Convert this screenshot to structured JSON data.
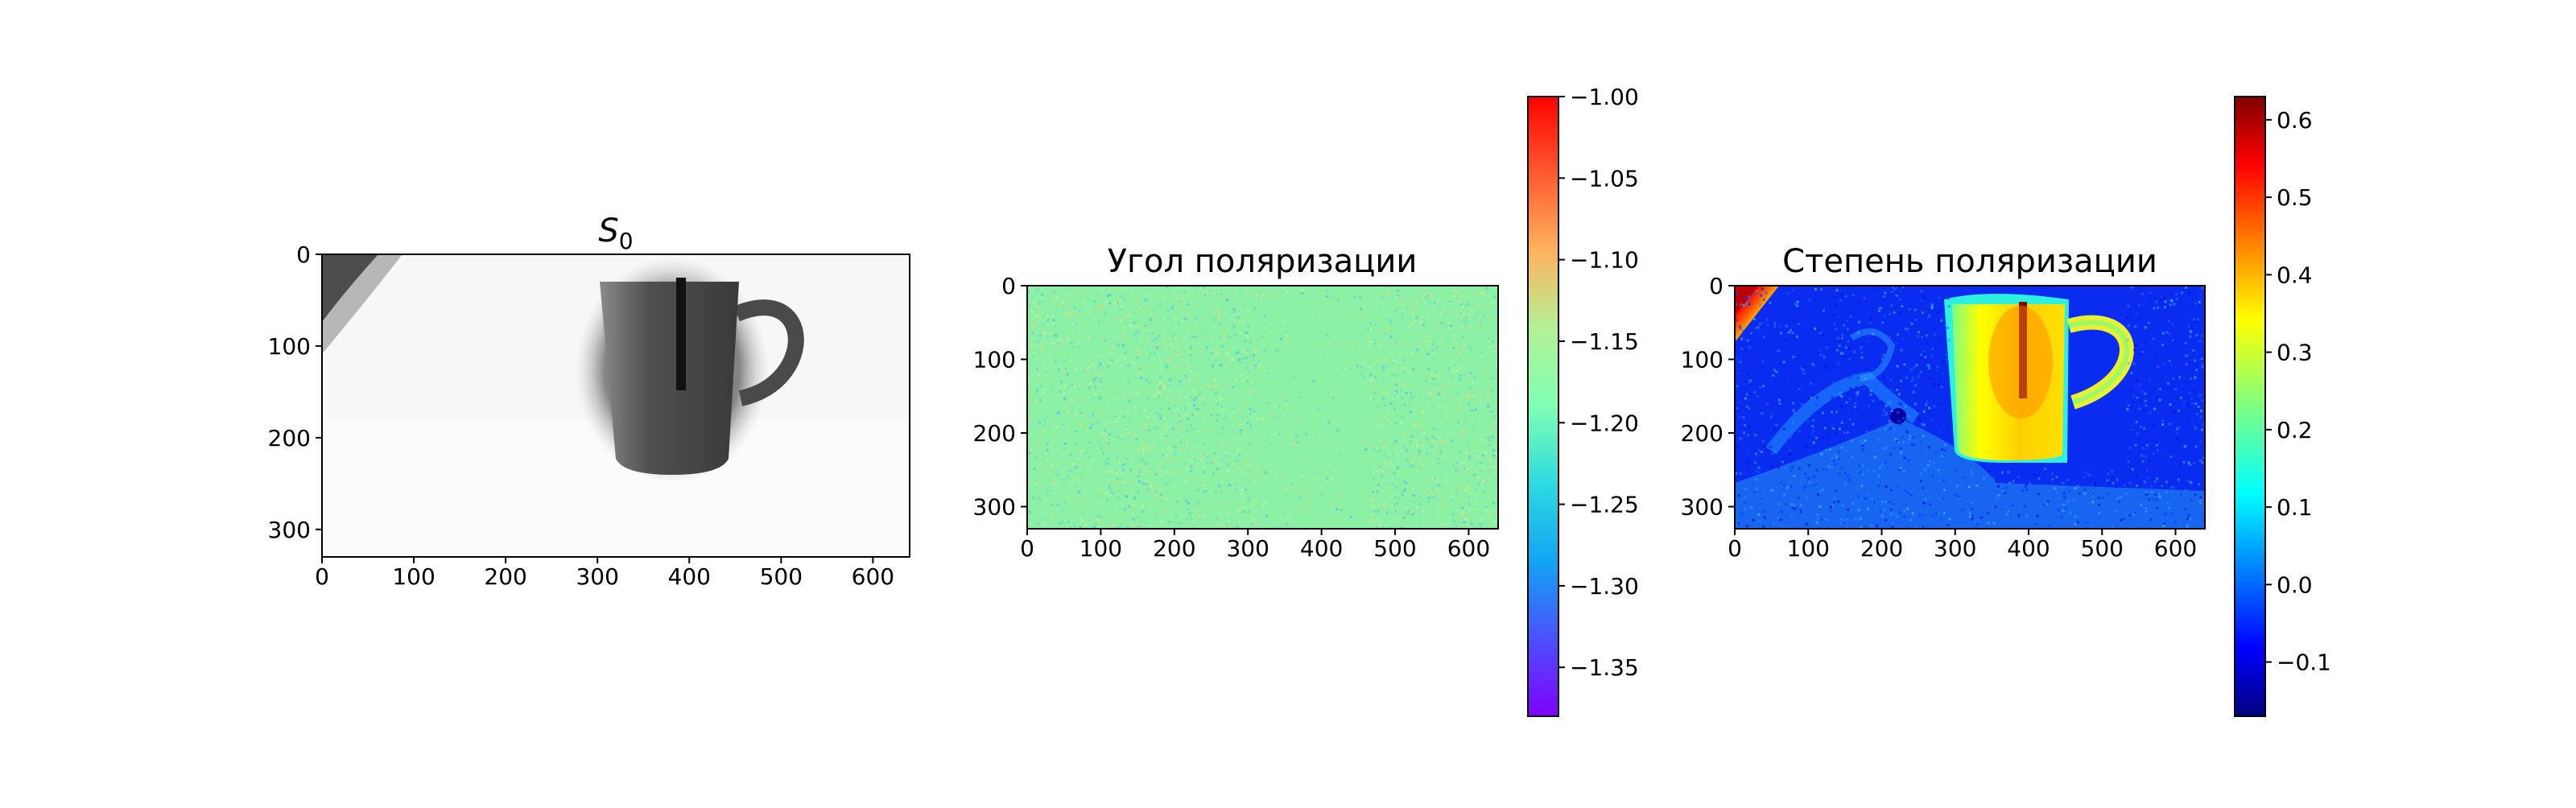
{
  "chart_data": [
    {
      "type": "heatmap",
      "title_main": "S",
      "title_sub": "0",
      "colormap": "gray",
      "extent": {
        "x": [
          0,
          640
        ],
        "y": [
          0,
          330
        ]
      },
      "x_ticks": [
        0,
        100,
        200,
        300,
        400,
        500,
        600
      ],
      "y_ticks": [
        0,
        100,
        200,
        300
      ],
      "colorbar": null
    },
    {
      "type": "heatmap",
      "title": "Угол поляризации",
      "colormap": "rainbow",
      "extent": {
        "x": [
          0,
          640
        ],
        "y": [
          0,
          330
        ]
      },
      "x_ticks": [
        0,
        100,
        200,
        300,
        400,
        500,
        600
      ],
      "y_ticks": [
        0,
        100,
        200,
        300
      ],
      "colorbar": {
        "min": -1.38,
        "max": -1.0,
        "tick_values": [
          -1.0,
          -1.05,
          -1.1,
          -1.15,
          -1.2,
          -1.25,
          -1.3,
          -1.35
        ],
        "tick_labels": [
          "−1.00",
          "−1.05",
          "−1.10",
          "−1.15",
          "−1.20",
          "−1.25",
          "−1.30",
          "−1.35"
        ]
      }
    },
    {
      "type": "heatmap",
      "title": "Степень поляризации",
      "colormap": "jet",
      "extent": {
        "x": [
          0,
          640
        ],
        "y": [
          0,
          330
        ]
      },
      "x_ticks": [
        0,
        100,
        200,
        300,
        400,
        500,
        600
      ],
      "y_ticks": [
        0,
        100,
        200,
        300
      ],
      "colorbar": {
        "min": -0.17,
        "max": 0.63,
        "tick_values": [
          -0.1,
          0.0,
          0.1,
          0.2,
          0.3,
          0.4,
          0.5,
          0.6
        ],
        "tick_labels": [
          "−0.1",
          "0.0",
          "0.1",
          "0.2",
          "0.3",
          "0.4",
          "0.5",
          "0.6"
        ]
      }
    }
  ]
}
